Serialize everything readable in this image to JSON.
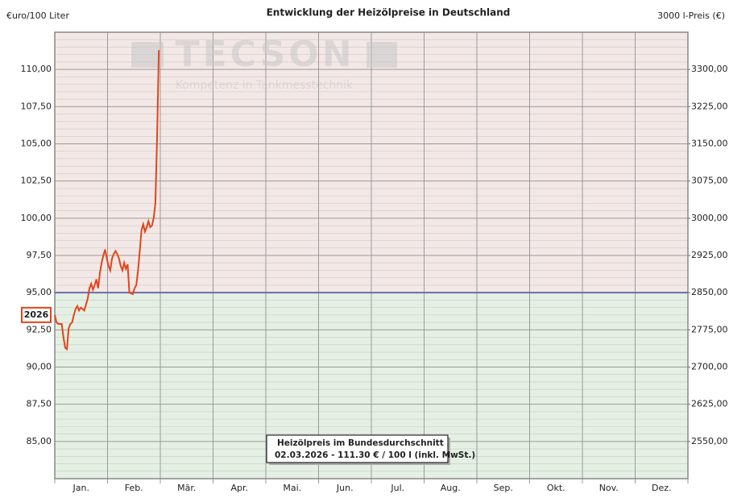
{
  "chart_data": {
    "type": "line",
    "title": "Entwicklung der Heizölpreise in Deutschland",
    "y_label": "€uro/100 Liter",
    "y2_label": "3000 l-Preis (€)",
    "watermark": "TECSON",
    "watermark_subtitle": "Kompetenz in Tankmesstechnik",
    "annotation": [
      "Heizölpreis im Bundesdurchschnitt",
      "02.03.2026 - 111.30 € / 100 l (inkl. MwSt.)"
    ],
    "categories": [
      "Jan.",
      "Feb.",
      "Mär.",
      "Apr.",
      "Mai.",
      "Jun.",
      "Jul.",
      "Aug.",
      "Sep.",
      "Okt.",
      "Nov.",
      "Dez."
    ],
    "xlim": [
      1,
      366
    ],
    "x": [
      1,
      2,
      3,
      4,
      5,
      6,
      7,
      8,
      9,
      10,
      11,
      12,
      13,
      14,
      15,
      16,
      17,
      18,
      19,
      20,
      21,
      22,
      23,
      24,
      25,
      26,
      27,
      28,
      29,
      30,
      31,
      32,
      33,
      34,
      35,
      36,
      37,
      38,
      39,
      40,
      41,
      42,
      43,
      44,
      45,
      46,
      47,
      48,
      49,
      50,
      51,
      52,
      53,
      54,
      55,
      56,
      57,
      58,
      59,
      60,
      61
    ],
    "series": [
      {
        "name": "2026",
        "color": "#e0461a",
        "values": [
          93.5,
          93.0,
          92.9,
          92.9,
          92.9,
          92.0,
          91.3,
          91.2,
          92.6,
          92.9,
          93.0,
          93.5,
          93.9,
          94.1,
          93.8,
          94.0,
          93.9,
          93.8,
          94.2,
          94.6,
          95.3,
          95.6,
          95.2,
          95.5,
          95.9,
          95.3,
          96.3,
          97.0,
          97.5,
          97.9,
          97.3,
          96.8,
          96.5,
          97.3,
          97.6,
          97.8,
          97.6,
          97.3,
          96.8,
          96.5,
          97.0,
          96.6,
          96.9,
          95.0,
          94.95,
          94.9,
          95.3,
          95.5,
          96.5,
          97.8,
          99.2,
          99.6,
          99.1,
          99.4,
          99.8,
          99.4,
          99.5,
          100.0,
          101.0,
          105.5,
          111.3
        ]
      }
    ],
    "reference_line": 95,
    "reference_color": "#6b6ba8",
    "upper_color": "#f4e8e6",
    "lower_color": "#e4f0e3",
    "ylim": [
      82.5,
      112.5
    ],
    "yticks": [
      {
        "value": 85,
        "label": "85,00"
      },
      {
        "value": 87.5,
        "label": "87,50"
      },
      {
        "value": 90,
        "label": "90,00"
      },
      {
        "value": 92.5,
        "label": "92,50"
      },
      {
        "value": 95,
        "label": "95,00"
      },
      {
        "value": 97.5,
        "label": "97,50"
      },
      {
        "value": 100,
        "label": "100,00"
      },
      {
        "value": 102.5,
        "label": "102,50"
      },
      {
        "value": 105,
        "label": "105,00"
      },
      {
        "value": 107.5,
        "label": "107,50"
      },
      {
        "value": 110,
        "label": "110,00"
      }
    ],
    "y2lim": [
      2475,
      3375
    ],
    "y2ticks": [
      {
        "value": 2550,
        "label": "2550,00"
      },
      {
        "value": 2625,
        "label": "2625,00"
      },
      {
        "value": 2700,
        "label": "2700,00"
      },
      {
        "value": 2775,
        "label": "2775,00"
      },
      {
        "value": 2850,
        "label": "2850,00"
      },
      {
        "value": 2925,
        "label": "2925,00"
      },
      {
        "value": 3000,
        "label": "3000,00"
      },
      {
        "value": 3075,
        "label": "3075,00"
      },
      {
        "value": 3150,
        "label": "3150,00"
      },
      {
        "value": 3225,
        "label": "3225,00"
      },
      {
        "value": 3300,
        "label": "3300,00"
      }
    ],
    "grid": true
  }
}
